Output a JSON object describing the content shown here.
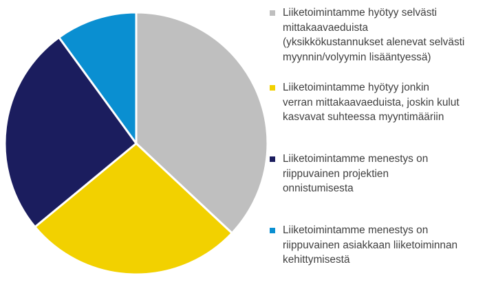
{
  "chart_data": {
    "type": "pie",
    "title": "",
    "start_angle_deg": 0,
    "direction": "clockwise",
    "series": [
      {
        "name": "Liiketoimintamme hyötyy selvästi\nmittakaavaeduista\n(yksikkökustannukset alenevat selvästi\nmyynnin/volyymin lisääntyessä)",
        "value": 37,
        "color": "#BFBFBF"
      },
      {
        "name": "Liiketoimintamme hyötyy jonkin\nverran mittakaavaeduista, joskin kulut\nkasvavat suhteessa myyntimääriin",
        "value": 27,
        "color": "#F2D100"
      },
      {
        "name": "Liiketoimintamme menestys on\nriippuvainen projektien\nonnistumisesta",
        "value": 26,
        "color": "#1B1D5E"
      },
      {
        "name": "Liiketoimintamme menestys on\nriippuvainen asiakkaan liiketoiminnan\nkehittymisestä",
        "value": 10,
        "color": "#0A8FD1"
      }
    ],
    "legend_position": "right"
  }
}
